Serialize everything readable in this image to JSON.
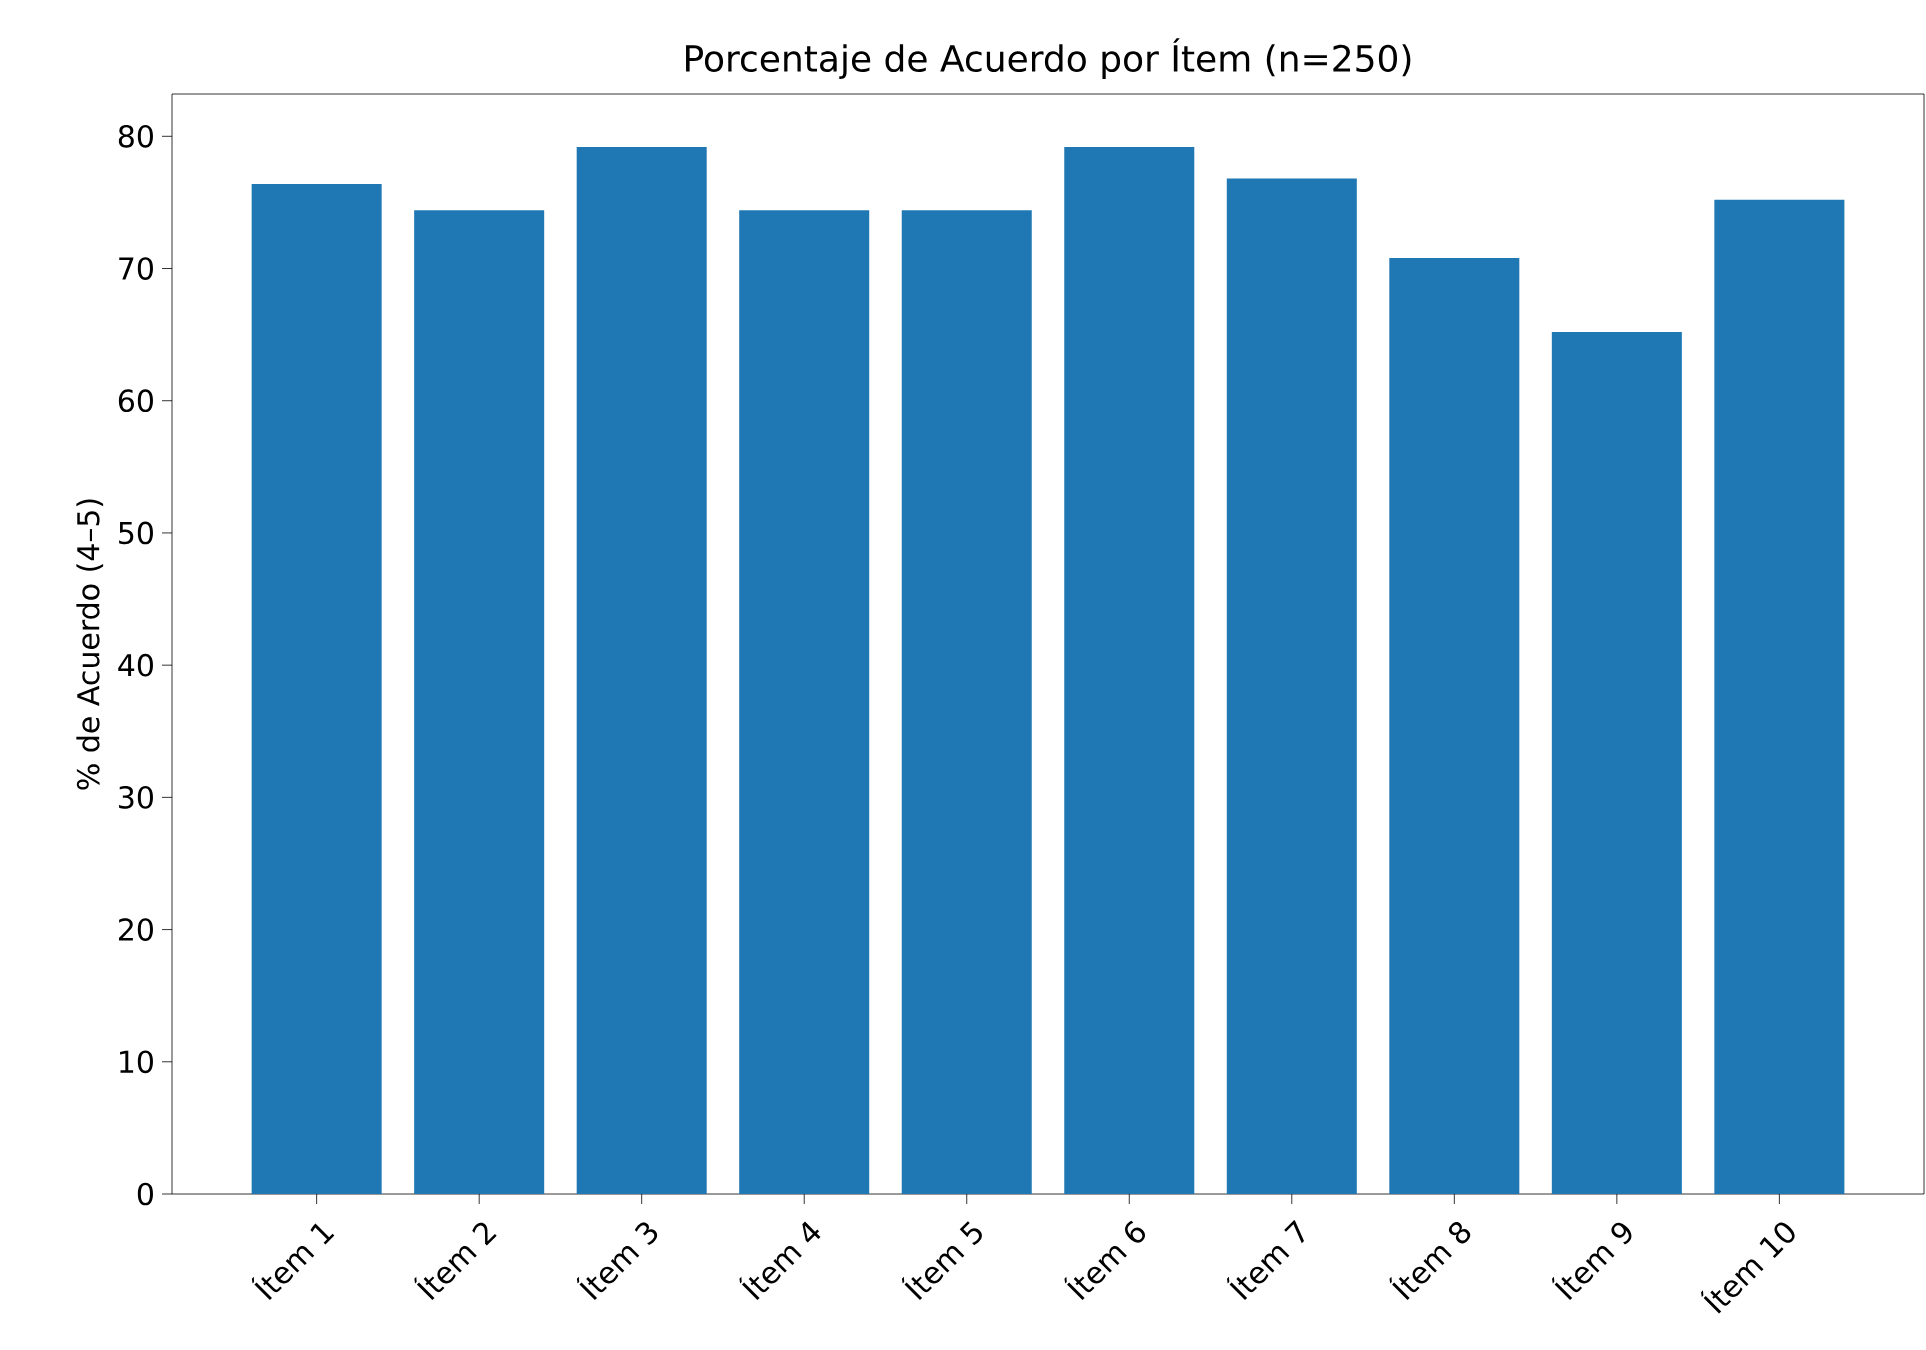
{
  "chart_data": {
    "type": "bar",
    "title": "Porcentaje de Acuerdo por Ítem (n=250)",
    "ylabel": "% de Acuerdo (4–5)",
    "categories": [
      "Ítem 1",
      "Ítem 2",
      "Ítem 3",
      "Ítem 4",
      "Ítem 5",
      "Ítem 6",
      "Ítem 7",
      "Ítem 8",
      "Ítem 9",
      "Ítem 10"
    ],
    "values": [
      76.4,
      74.4,
      79.2,
      74.4,
      74.4,
      79.2,
      76.8,
      70.8,
      65.2,
      75.2
    ],
    "color": "#1f77b4",
    "ylim": [
      0,
      83.2
    ],
    "yticks": [
      0,
      10,
      20,
      30,
      40,
      50,
      60,
      70,
      80
    ],
    "grid": false
  }
}
